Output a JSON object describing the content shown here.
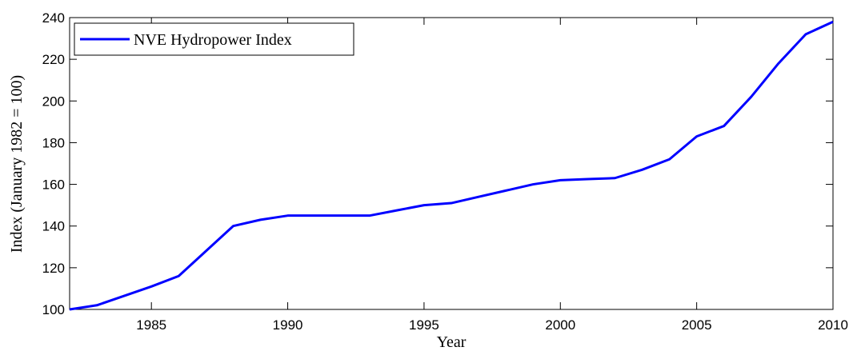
{
  "chart_data": {
    "type": "line",
    "xlabel": "Year",
    "ylabel": "Index (January 1982 = 100)",
    "x": [
      1982,
      1983,
      1984,
      1985,
      1986,
      1987,
      1988,
      1989,
      1990,
      1991,
      1992,
      1993,
      1994,
      1995,
      1996,
      1997,
      1998,
      1999,
      2000,
      2001,
      2002,
      2003,
      2004,
      2005,
      2006,
      2007,
      2008,
      2009,
      2010
    ],
    "series": [
      {
        "name": "NVE Hydropower Index",
        "color": "#0000ff",
        "values": [
          100,
          102,
          106.5,
          111,
          116,
          128,
          140,
          143,
          145,
          145,
          145,
          145,
          147.5,
          150,
          151,
          154,
          157,
          160,
          162,
          162.5,
          163,
          167,
          172,
          183,
          188,
          202,
          218,
          232,
          238
        ]
      }
    ],
    "xlim": [
      1982,
      2010
    ],
    "xticks": [
      1985,
      1990,
      1995,
      2000,
      2005,
      2010
    ],
    "ylim": [
      100,
      240
    ],
    "yticks": [
      100,
      120,
      140,
      160,
      180,
      200,
      220,
      240
    ],
    "grid": false,
    "legend": "upper left"
  }
}
